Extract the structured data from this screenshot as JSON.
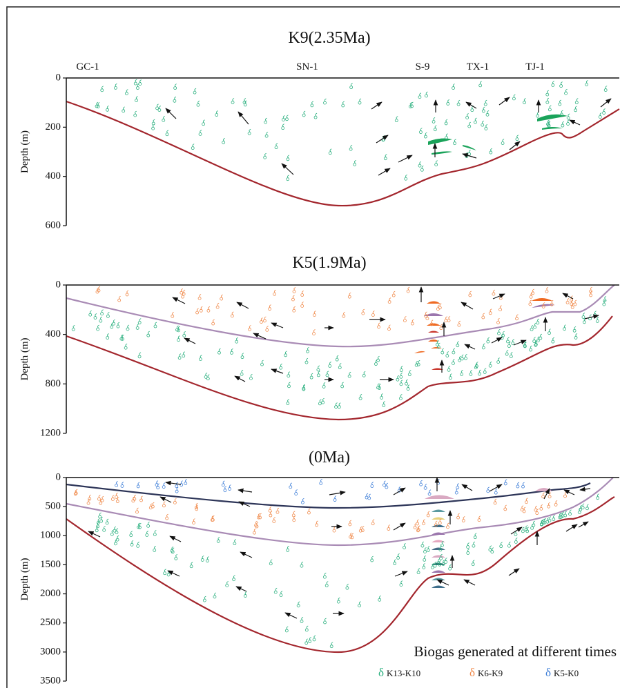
{
  "panels": [
    {
      "title": "K9(2.35Ma)",
      "y_axis_label": "Depth (m)",
      "yticks": [
        0,
        200,
        400,
        600
      ],
      "wells": [
        "GC-1",
        "SN-1",
        "S-9",
        "TX-1",
        "TJ-1"
      ]
    },
    {
      "title": "K5(1.9Ma)",
      "y_axis_label": "Depth (m)",
      "yticks": [
        0,
        400,
        800,
        1200
      ]
    },
    {
      "title": "(0Ma)",
      "y_axis_label": "Depth (m)",
      "yticks": [
        0,
        500,
        1000,
        1500,
        2000,
        2500,
        3000,
        3500
      ]
    }
  ],
  "legend": {
    "title": "Biogas generated at different times",
    "items": [
      {
        "symbol": "δ",
        "label": "K13-K10",
        "color": "#2bb07f"
      },
      {
        "symbol": "δ",
        "label": "K6-K9",
        "color": "#f08a4b"
      },
      {
        "symbol": "δ",
        "label": "K5-K0",
        "color": "#3f7fd8"
      }
    ]
  }
}
